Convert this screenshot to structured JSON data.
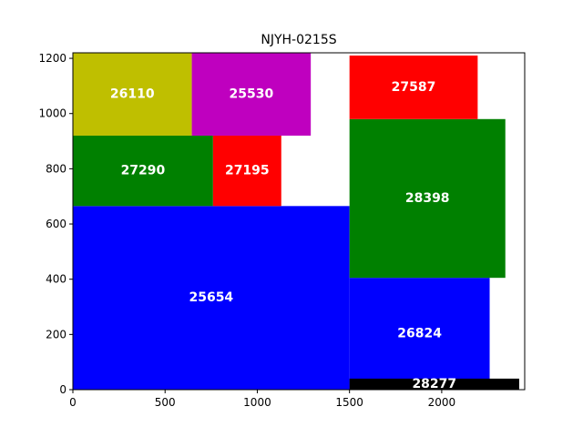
{
  "chart_data": {
    "type": "rectangle-packing",
    "title": "NJYH-0215S",
    "xlim": [
      0,
      2450
    ],
    "ylim": [
      0,
      1220
    ],
    "x_ticks": [
      0,
      500,
      1000,
      1500,
      2000
    ],
    "y_ticks": [
      0,
      200,
      400,
      600,
      800,
      1000,
      1200
    ],
    "grid": false,
    "rects": [
      {
        "label": "25654",
        "x": 0,
        "y": 0,
        "w": 1500,
        "h": 665,
        "color": "#0000ff"
      },
      {
        "label": "27290",
        "x": 0,
        "y": 665,
        "w": 760,
        "h": 255,
        "color": "#008000"
      },
      {
        "label": "27195",
        "x": 760,
        "y": 665,
        "w": 370,
        "h": 255,
        "color": "#ff0000"
      },
      {
        "label": "26110",
        "x": 0,
        "y": 920,
        "w": 645,
        "h": 300,
        "color": "#bfbf00"
      },
      {
        "label": "25530",
        "x": 645,
        "y": 920,
        "w": 645,
        "h": 300,
        "color": "#bf00bf"
      },
      {
        "label": "26824",
        "x": 1500,
        "y": 0,
        "w": 760,
        "h": 405,
        "color": "#0000ff"
      },
      {
        "label": "28277",
        "x": 1500,
        "y": 0,
        "w": 920,
        "h": 40,
        "color": "#000000"
      },
      {
        "label": "28398",
        "x": 1500,
        "y": 405,
        "w": 845,
        "h": 575,
        "color": "#008000"
      },
      {
        "label": "27587",
        "x": 1500,
        "y": 980,
        "w": 695,
        "h": 230,
        "color": "#ff0000"
      }
    ]
  }
}
